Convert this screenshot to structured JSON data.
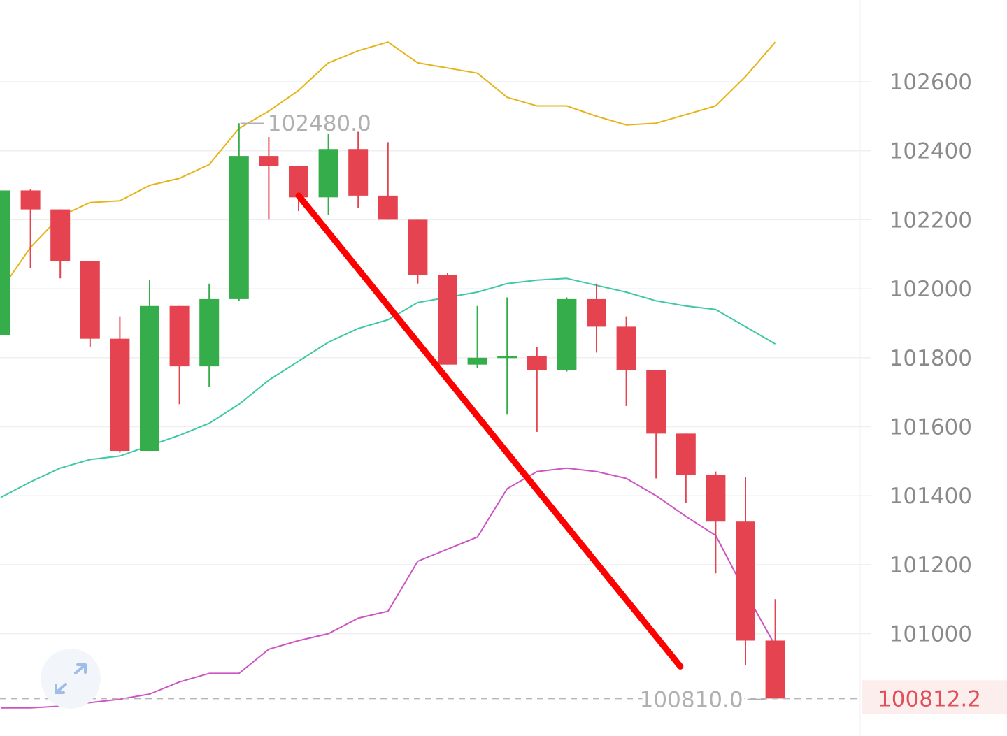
{
  "chart_data": {
    "type": "candlestick",
    "title": "",
    "y_axis": {
      "ticks": [
        "102600",
        "102400",
        "102200",
        "102000",
        "101800",
        "101600",
        "101400",
        "101200",
        "101000"
      ],
      "range": [
        100740,
        102860
      ],
      "grid": true,
      "position": "right"
    },
    "candles": [
      {
        "open": 101865,
        "high": 102285,
        "low": 101865,
        "close": 102285
      },
      {
        "open": 102285,
        "high": 102290,
        "low": 102060,
        "close": 102230
      },
      {
        "open": 102230,
        "high": 102230,
        "low": 102030,
        "close": 102080
      },
      {
        "open": 102080,
        "high": 102080,
        "low": 101830,
        "close": 101855
      },
      {
        "open": 101855,
        "high": 101920,
        "low": 101525,
        "close": 101530
      },
      {
        "open": 101530,
        "high": 102025,
        "low": 101530,
        "close": 101950
      },
      {
        "open": 101950,
        "high": 101950,
        "low": 101665,
        "close": 101775
      },
      {
        "open": 101775,
        "high": 102015,
        "low": 101715,
        "close": 101970
      },
      {
        "open": 101970,
        "high": 102480,
        "low": 101965,
        "close": 102385
      },
      {
        "open": 102385,
        "high": 102440,
        "low": 102200,
        "close": 102355
      },
      {
        "open": 102355,
        "high": 102355,
        "low": 102225,
        "close": 102265
      },
      {
        "open": 102265,
        "high": 102450,
        "low": 102215,
        "close": 102405
      },
      {
        "open": 102405,
        "high": 102455,
        "low": 102235,
        "close": 102270
      },
      {
        "open": 102270,
        "high": 102425,
        "low": 102200,
        "close": 102200
      },
      {
        "open": 102200,
        "high": 102200,
        "low": 102015,
        "close": 102040
      },
      {
        "open": 102040,
        "high": 102045,
        "low": 101780,
        "close": 101780
      },
      {
        "open": 101780,
        "high": 101950,
        "low": 101770,
        "close": 101800
      },
      {
        "open": 101800,
        "high": 101975,
        "low": 101635,
        "close": 101805
      },
      {
        "open": 101805,
        "high": 101830,
        "low": 101585,
        "close": 101765
      },
      {
        "open": 101765,
        "high": 101975,
        "low": 101760,
        "close": 101970
      },
      {
        "open": 101970,
        "high": 102015,
        "low": 101815,
        "close": 101890
      },
      {
        "open": 101890,
        "high": 101920,
        "low": 101660,
        "close": 101765
      },
      {
        "open": 101765,
        "high": 101765,
        "low": 101450,
        "close": 101580
      },
      {
        "open": 101580,
        "high": 101580,
        "low": 101380,
        "close": 101460
      },
      {
        "open": 101460,
        "high": 101470,
        "low": 101175,
        "close": 101325
      },
      {
        "open": 101325,
        "high": 101455,
        "low": 100910,
        "close": 100980
      },
      {
        "open": 100980,
        "high": 101100,
        "low": 100810,
        "close": 100812
      }
    ],
    "bollinger": {
      "upper": [
        101995,
        102120,
        102210,
        102250,
        102255,
        102300,
        102320,
        102360,
        102465,
        102515,
        102575,
        102655,
        102690,
        102715,
        102655,
        102640,
        102625,
        102555,
        102530,
        102530,
        102500,
        102475,
        102480,
        102505,
        102530,
        102615,
        102715
      ],
      "middle": [
        101395,
        101440,
        101480,
        101505,
        101515,
        101545,
        101575,
        101610,
        101665,
        101735,
        101790,
        101845,
        101885,
        101910,
        101960,
        101975,
        101990,
        102015,
        102025,
        102030,
        102010,
        101990,
        101965,
        101950,
        101940,
        101890,
        101840
      ],
      "lower": [
        100785,
        100785,
        100790,
        100800,
        100810,
        100825,
        100860,
        100885,
        100885,
        100955,
        100980,
        101000,
        101045,
        101065,
        101210,
        101245,
        101280,
        101420,
        101470,
        101480,
        101470,
        101450,
        101400,
        101340,
        101285,
        101120,
        100965
      ]
    },
    "annotations": {
      "high_label": "102480.0",
      "low_label": "100810.0",
      "current_price": "100812.2"
    },
    "arrow": {
      "from": {
        "candle_index": 10,
        "price": 102270
      },
      "to": {
        "candle_index": 23,
        "price": 100885
      },
      "color": "#ff0000"
    },
    "colors": {
      "up": "#35ad4a",
      "down": "#e4434f",
      "upper": "#e6b418",
      "middle": "#3fc8a6",
      "lower": "#cc55c2",
      "arrow": "#ff0000"
    }
  },
  "expand_icon": "expand-icon"
}
